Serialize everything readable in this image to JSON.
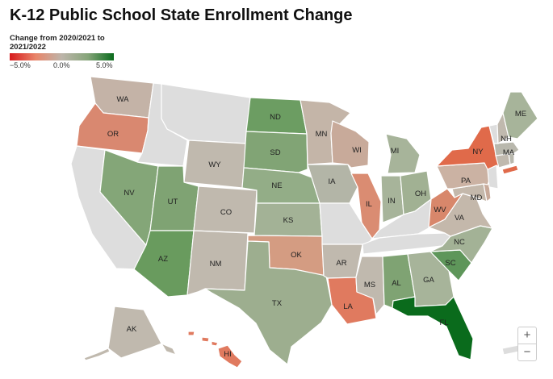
{
  "title": "K-12 Public School State Enrollment Change",
  "legend": {
    "title": "Change from 2020/2021 to 2021/2022",
    "ticks": [
      "−5.0%",
      "0.0%",
      "5.0%"
    ]
  },
  "colors": {
    "no_data": "#dddddd",
    "scale_low": "#d7191c",
    "scale_mid": "#bdb5aa",
    "scale_high": "#0a6b1c"
  },
  "states": {
    "WA": {
      "label": "WA",
      "color": "#c4b3a7"
    },
    "OR": {
      "label": "OR",
      "color": "#d98870"
    },
    "CA": {
      "label": "",
      "color": "#dddddd"
    },
    "ID": {
      "label": "",
      "color": "#dddddd"
    },
    "NV": {
      "label": "NV",
      "color": "#84a678"
    },
    "MT": {
      "label": "",
      "color": "#dddddd"
    },
    "WY": {
      "label": "WY",
      "color": "#c0b9ae"
    },
    "UT": {
      "label": "UT",
      "color": "#7fa373"
    },
    "AZ": {
      "label": "AZ",
      "color": "#699b5e"
    },
    "CO": {
      "label": "CO",
      "color": "#c0b9ae"
    },
    "NM": {
      "label": "NM",
      "color": "#c0b9ae"
    },
    "ND": {
      "label": "ND",
      "color": "#6c9d62"
    },
    "SD": {
      "label": "SD",
      "color": "#81a475"
    },
    "NE": {
      "label": "NE",
      "color": "#93ad87"
    },
    "KS": {
      "label": "KS",
      "color": "#a3b296"
    },
    "OK": {
      "label": "OK",
      "color": "#d49c82"
    },
    "TX": {
      "label": "TX",
      "color": "#9dae8f"
    },
    "MN": {
      "label": "MN",
      "color": "#c4b5a8"
    },
    "IA": {
      "label": "IA",
      "color": "#b3b5a7"
    },
    "MO": {
      "label": "",
      "color": "#dddddd"
    },
    "AR": {
      "label": "AR",
      "color": "#c0b9ae"
    },
    "LA": {
      "label": "LA",
      "color": "#e07a5f"
    },
    "WI": {
      "label": "WI",
      "color": "#c8aa9a"
    },
    "IL": {
      "label": "IL",
      "color": "#da8c72"
    },
    "MI": {
      "label": "MI",
      "color": "#a7b49a"
    },
    "IN": {
      "label": "IN",
      "color": "#a7b49a"
    },
    "OH": {
      "label": "OH",
      "color": "#a1b193"
    },
    "KY": {
      "label": "",
      "color": "#dddddd"
    },
    "TN": {
      "label": "",
      "color": "#dddddd"
    },
    "MS": {
      "label": "MS",
      "color": "#c0b9ae"
    },
    "AL": {
      "label": "AL",
      "color": "#7fa373"
    },
    "GA": {
      "label": "GA",
      "color": "#a7b49a"
    },
    "FL": {
      "label": "FL",
      "color": "#0a6b1c"
    },
    "SC": {
      "label": "SC",
      "color": "#5e965a"
    },
    "NC": {
      "label": "NC",
      "color": "#a3b296"
    },
    "VA": {
      "label": "VA",
      "color": "#c4b8ab"
    },
    "WV": {
      "label": "WV",
      "color": "#d8876b"
    },
    "MD": {
      "label": "MD",
      "color": "#c4b8ab"
    },
    "DE": {
      "label": "",
      "color": "#c8aa9a"
    },
    "PA": {
      "label": "PA",
      "color": "#cbb2a3"
    },
    "NJ": {
      "label": "",
      "color": "#dddddd"
    },
    "NY": {
      "label": "NY",
      "color": "#e06a4a"
    },
    "CT": {
      "label": "",
      "color": "#c0b9ae"
    },
    "RI": {
      "label": "",
      "color": "#b9b8ad"
    },
    "MA": {
      "label": "MA",
      "color": "#b9b8ad"
    },
    "VT": {
      "label": "",
      "color": "#dddddd"
    },
    "NH": {
      "label": "NH",
      "color": "#c0b9ae"
    },
    "ME": {
      "label": "ME",
      "color": "#a7b49a"
    },
    "AK": {
      "label": "AK",
      "color": "#c0b9ae"
    },
    "HI": {
      "label": "HI",
      "color": "#e07a5f"
    },
    "NYC": {
      "label": "",
      "color": "#e06a4a"
    }
  },
  "zoom": {
    "in_label": "+",
    "out_label": "−"
  }
}
